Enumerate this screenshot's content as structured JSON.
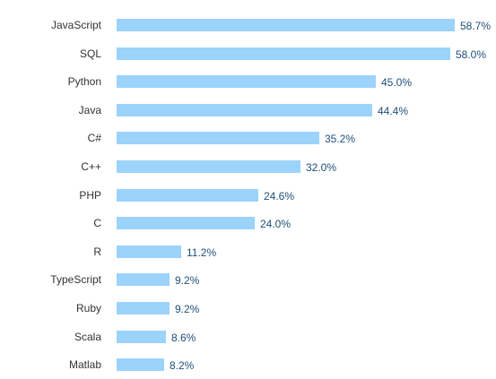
{
  "chart_data": {
    "type": "bar",
    "orientation": "horizontal",
    "categories": [
      "JavaScript",
      "SQL",
      "Python",
      "Java",
      "C#",
      "C++",
      "PHP",
      "C",
      "R",
      "TypeScript",
      "Ruby",
      "Scala",
      "Matlab"
    ],
    "values": [
      58.7,
      58.0,
      45.0,
      44.4,
      35.2,
      32.0,
      24.6,
      24.0,
      11.2,
      9.2,
      9.2,
      8.6,
      8.2
    ],
    "value_labels": [
      "58.7%",
      "58.0%",
      "45.0%",
      "44.4%",
      "35.2%",
      "32.0%",
      "24.6%",
      "24.0%",
      "11.2%",
      "9.2%",
      "9.2%",
      "8.6%",
      "8.2%"
    ],
    "title": "",
    "xlabel": "",
    "ylabel": "",
    "xlim": [
      0,
      60
    ],
    "grid": false,
    "legend": "none",
    "bar_color": "#9bd3fb",
    "value_label_color": "#1f4e79",
    "category_label_color": "#333333"
  }
}
